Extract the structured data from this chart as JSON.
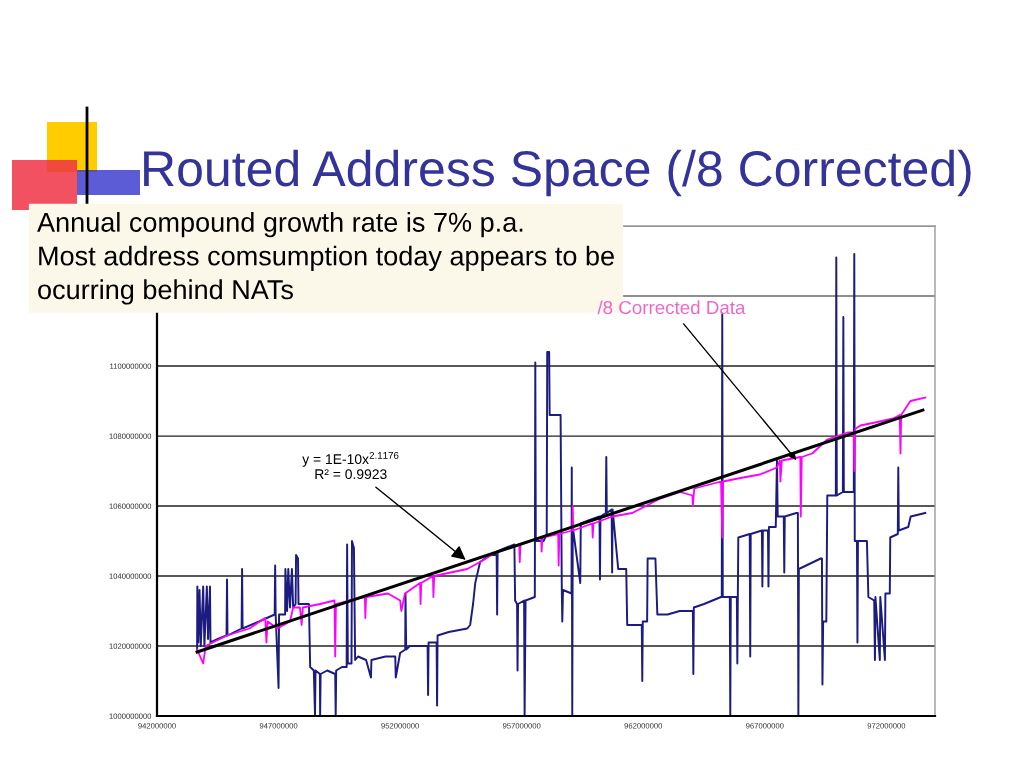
{
  "chart_data": {
    "type": "line",
    "title": "Routed Address Space (/8 Corrected)",
    "xlim": [
      942000000,
      974000000
    ],
    "xticks": [
      942000000,
      947000000,
      952000000,
      957000000,
      962000000,
      967000000,
      972000000
    ],
    "ylim": [
      1000000000,
      1140000000
    ],
    "yticks": [
      1000000000,
      1020000000,
      1040000000,
      1060000000,
      1080000000,
      1100000000,
      {
        "value": 1120000000,
        "label": null
      },
      {
        "value": 1140000000,
        "label": null
      }
    ],
    "grid": "y",
    "series": [
      {
        "color": "#1b1b80",
        "x": [
          943650000.0,
          943660000.0,
          943700000.0,
          943750000.0,
          943800000.0,
          943900000.0,
          943950000.0,
          944050000.0,
          944100000.0,
          944180000.0,
          944200000.0,
          944500000.0,
          944860000.0,
          944880000.0,
          944900000.0,
          945480000.0,
          945500000.0,
          945520000.0,
          946200000.0,
          946840000.0,
          946860000.0,
          946880000.0,
          947000000.0,
          947020000.0,
          947270000.0,
          947280000.0,
          947350000.0,
          947400000.0,
          947470000.0,
          947550000.0,
          947600000.0,
          947700000.0,
          947720000.0,
          947800000.0,
          947820000.0,
          948250000.0,
          948300000.0,
          948450000.0,
          948500000.0,
          948520000.0,
          948700000.0,
          948710000.0,
          948730000.0,
          949000000.0,
          949330000.0,
          949350000.0,
          949370000.0,
          949610000.0,
          949800000.0,
          949820000.0,
          949850000.0,
          950000000.0,
          950020000.0,
          950100000.0,
          950150000.0,
          950270000.0,
          950600000.0,
          950800000.0,
          950820000.0,
          951400000.0,
          951800000.0,
          951820000.0,
          952000000.0,
          952210000.0,
          952220000.0,
          952250000.0,
          952400000.0,
          953130000.0,
          953150000.0,
          953170000.0,
          953500000.0,
          953520000.0,
          953540000.0,
          954000000.0,
          954760000.0,
          954880000.0,
          955000000.0,
          955090000.0,
          955290000.0,
          955700000.0,
          955970000.0,
          955990000.0,
          956010000.0,
          956320000.0,
          956700000.0,
          956730000.0,
          956810000.0,
          956830000.0,
          956850000.0,
          957100000.0,
          957120000.0,
          957160000.0,
          957540000.0,
          957560000.0,
          957580000.0,
          957900000.0,
          958030000.0,
          958050000.0,
          958130000.0,
          958150000.0,
          958600000.0,
          958650000.0,
          958670000.0,
          958700000.0,
          959050000.0,
          959060000.0,
          959080000.0,
          959100000.0,
          959410000.0,
          959430000.0,
          959800000.0,
          960200000.0,
          960220000.0,
          960240000.0,
          960460000.0,
          960480000.0,
          960500000.0,
          960700000.0,
          960720000.0,
          960740000.0,
          960970000.0,
          961300000.0,
          961340000.0,
          961800000.0,
          961940000.0,
          961960000.0,
          961980000.0,
          962160000.0,
          962180000.0,
          962500000.0,
          962580000.0,
          963000000.0,
          963500000.0,
          964040000.0,
          964060000.0,
          964080000.0,
          964500000.0,
          965200000.0,
          965230000.0,
          965250000.0,
          965270000.0,
          965560000.0,
          965580000.0,
          965600000.0,
          965850000.0,
          965870000.0,
          965890000.0,
          965910000.0,
          966380000.0,
          966400000.0,
          966420000.0,
          966880000.0,
          966900000.0,
          966920000.0,
          967130000.0,
          967150000.0,
          967170000.0,
          967450000.0,
          967500000.0,
          967530000.0,
          967780000.0,
          967800000.0,
          967820000.0,
          968300000.0,
          968360000.0,
          968380000.0,
          968400000.0,
          968700000.0,
          969300000.0,
          969350000.0,
          969370000.0,
          969400000.0,
          969530000.0,
          969570000.0,
          969900000.0,
          969920000.0,
          969940000.0,
          969960000.0,
          970210000.0,
          970230000.0,
          970250000.0,
          970600000.0,
          970660000.0,
          970680000.0,
          970700000.0,
          970790000.0,
          970810000.0,
          970830000.0,
          971200000.0,
          971260000.0,
          971500000.0,
          971530000.0,
          971550000.0,
          971730000.0,
          971750000.0,
          971940000.0,
          971960000.0,
          972140000.0,
          972160000.0,
          972470000.0,
          972490000.0,
          972510000.0,
          972900000.0,
          973000000.0,
          973600000.0
        ],
        "values": [
          1019000000.0,
          1037000000.0,
          1021000000.0,
          1036000000.0,
          1020000000.0,
          1037000000.0,
          1020000000.0,
          1037000000.0,
          1022000000.0,
          1037000000.0,
          1021000000.0,
          1022000000.0,
          1023000000.0,
          1039000000.0,
          1023000000.0,
          1025000000.0,
          1042000000.0,
          1025000000.0,
          1027000000.0,
          1029000000.0,
          1043000000.0,
          1029000000.0,
          1008000000.0,
          1029000000.0,
          1029000000.0,
          1042000000.0,
          1030000000.0,
          1042000000.0,
          1031000000.0,
          1042000000.0,
          1031000000.0,
          1032000000.0,
          1046000000.0,
          1045000000.0,
          1032000000.0,
          1032000000.0,
          1014000000.0,
          1013000000.0,
          1000000000.0,
          1013000000.0,
          1012000000.0,
          1000000000.0,
          1012000000.0,
          1013000000.0,
          1012000000.0,
          1000000000.0,
          1013000000.0,
          1014000000.0,
          1014000000.0,
          1049000000.0,
          1015000000.0,
          1015000000.0,
          1050000000.0,
          1048000000.0,
          1016000000.0,
          1017000000.0,
          1016000000.0,
          1011000000.0,
          1016000000.0,
          1017000000.0,
          1017000000.0,
          1011000000.0,
          1018000000.0,
          1019000000.0,
          1035000000.0,
          1019000000.0,
          1020000000.0,
          1020000000.0,
          1006000000.0,
          1021000000.0,
          1021000000.0,
          1003000000.0,
          1023000000.0,
          1024000000.0,
          1025000000.0,
          1026000000.0,
          1032000000.0,
          1038000000.0,
          1044000000.0,
          1046000000.0,
          1046000000.0,
          1029000000.0,
          1047000000.0,
          1048000000.0,
          1049000000.0,
          1033000000.0,
          1032000000.0,
          1013000000.0,
          1032000000.0,
          1033000000.0,
          1000000000.0,
          1033000000.0,
          1034000000.0,
          1101000000.0,
          1050000000.0,
          1050000000.0,
          1052000000.0,
          1104000000.0,
          1104000000.0,
          1086000000.0,
          1086000000.0,
          1036000000.0,
          1027000000.0,
          1036000000.0,
          1035000000.0,
          1071000000.0,
          1000000000.0,
          1054000000.0,
          1038000000.0,
          1055000000.0,
          1056000000.0,
          1057000000.0,
          1039000000.0,
          1057000000.0,
          1058000000.0,
          1074000000.0,
          1058000000.0,
          1059000000.0,
          1041000000.0,
          1059000000.0,
          1042000000.0,
          1042000000.0,
          1026000000.0,
          1026000000.0,
          1026000000.0,
          1010000000.0,
          1027000000.0,
          1027000000.0,
          1045000000.0,
          1045000000.0,
          1029000000.0,
          1029000000.0,
          1030000000.0,
          1030000000.0,
          1012000000.0,
          1031000000.0,
          1032000000.0,
          1034000000.0,
          1034000000.0,
          1115000000.0,
          1034000000.0,
          1034000000.0,
          1000000000.0,
          1034000000.0,
          1034000000.0,
          1015000000.0,
          1034000000.0,
          1051000000.0,
          1052000000.0,
          1017000000.0,
          1052000000.0,
          1053000000.0,
          1037000000.0,
          1053000000.0,
          1053000000.0,
          1037000000.0,
          1054000000.0,
          1054000000.0,
          1073000000.0,
          1057000000.0,
          1057000000.0,
          1041000000.0,
          1057000000.0,
          1058000000.0,
          1058000000.0,
          1000000000.0,
          1042000000.0,
          1043000000.0,
          1045000000.0,
          1045000000.0,
          1009000000.0,
          1027000000.0,
          1027000000.0,
          1063000000.0,
          1063000000.0,
          1063000000.0,
          1131000000.0,
          1063000000.0,
          1064000000.0,
          1114000000.0,
          1064000000.0,
          1064000000.0,
          1064000000.0,
          1132000000.0,
          1050000000.0,
          1050000000.0,
          1021000000.0,
          1050000000.0,
          1050000000.0,
          1034000000.0,
          1033000000.0,
          1016000000.0,
          1034000000.0,
          1016000000.0,
          1034000000.0,
          1016000000.0,
          1035000000.0,
          1035000000.0,
          1051000000.0,
          1052000000.0,
          1071000000.0,
          1053000000.0,
          1054000000.0,
          1057000000.0,
          1058000000.0
        ]
      },
      {
        "color": "#ff00ff",
        "x": [
          943650000.0,
          943900000.0,
          944000000.0,
          944880000.0,
          945800000.0,
          946450000.0,
          946500000.0,
          946550000.0,
          946950000.0,
          947470000.0,
          947600000.0,
          947880000.0,
          947950000.0,
          948000000.0,
          948710000.0,
          949300000.0,
          949330000.0,
          949360000.0,
          949900000.0,
          950550000.0,
          950570000.0,
          950600000.0,
          951500000.0,
          952000000.0,
          952050000.0,
          952200000.0,
          952820000.0,
          952840000.0,
          952870000.0,
          953350000.0,
          953370000.0,
          953400000.0,
          954760000.0,
          955290000.0,
          955990000.0,
          956900000.0,
          956920000.0,
          956950000.0,
          957800000.0,
          957820000.0,
          957850000.0,
          958500000.0,
          958520000.0,
          958550000.0,
          959080000.0,
          959100000.0,
          959120000.0,
          959900000.0,
          959920000.0,
          959950000.0,
          960720000.0,
          961550000.0,
          962660000.0,
          963520000.0,
          964020000.0,
          964040000.0,
          964100000.0,
          965200000.0,
          965250000.0,
          965280000.0,
          966000000.0,
          966800000.0,
          967500000.0,
          967620000.0,
          967640000.0,
          967700000.0,
          968460000.0,
          968480000.0,
          968520000.0,
          968950000.0,
          969570000.0,
          970400000.0,
          970660000.0,
          970680000.0,
          970720000.0,
          970930000.0,
          971630000.0,
          972280000.0,
          972550000.0,
          972580000.0,
          972610000.0,
          972990000.0,
          973600000.0
        ],
        "values": [
          1019000000.0,
          1015000000.0,
          1020000000.0,
          1023000000.0,
          1025000000.0,
          1028000000.0,
          1021000000.0,
          1027000000.0,
          1025000000.0,
          1027000000.0,
          1031000000.0,
          1031000000.0,
          1026000000.0,
          1031000000.0,
          1032000000.0,
          1033000000.0,
          1017000000.0,
          1032000000.0,
          1033000000.0,
          1034000000.0,
          1028000000.0,
          1034000000.0,
          1035000000.0,
          1033000000.0,
          1030000000.0,
          1035000000.0,
          1038000000.0,
          1032000000.0,
          1038000000.0,
          1040000000.0,
          1034000000.0,
          1040000000.0,
          1042000000.0,
          1044000000.0,
          1047000000.0,
          1049000000.0,
          1044000000.0,
          1049000000.0,
          1051000000.0,
          1047000000.0,
          1051000000.0,
          1052000000.0,
          1043000000.0,
          1052000000.0,
          1053000000.0,
          1060000000.0,
          1053000000.0,
          1055000000.0,
          1051000000.0,
          1055000000.0,
          1057000000.0,
          1058000000.0,
          1062000000.0,
          1064000000.0,
          1063000000.0,
          1060000000.0,
          1065000000.0,
          1067000000.0,
          1051000000.0,
          1067000000.0,
          1068000000.0,
          1069000000.0,
          1071000000.0,
          1073000000.0,
          1067000000.0,
          1073000000.0,
          1074000000.0,
          1057000000.0,
          1074000000.0,
          1075000000.0,
          1079000000.0,
          1081000000.0,
          1081000000.0,
          1070000000.0,
          1082000000.0,
          1083000000.0,
          1084000000.0,
          1085000000.0,
          1086000000.0,
          1075000000.0,
          1086000000.0,
          1090000000.0,
          1091000000.0
        ]
      },
      {
        "type": "line",
        "color": "#000000",
        "x": [
          943650000.0,
          958600000.0,
          973500000.0
        ],
        "values": [
          1018300000.0,
          1052900000.0,
          1087400000.0
        ]
      }
    ],
    "annotations": [
      "Annual compound growth rate is 7% p.a.\nMost address comsumption today appears to be\nocurring behind NATs",
      {
        "text": "y = 1E-10x$^{2.1176}$\nR² = 0.9923",
        "x": 954700000,
        "y": 1044600000
      },
      {
        "text": "/8 Corrected Data",
        "x": 968300000,
        "y": 1073100000
      }
    ]
  }
}
